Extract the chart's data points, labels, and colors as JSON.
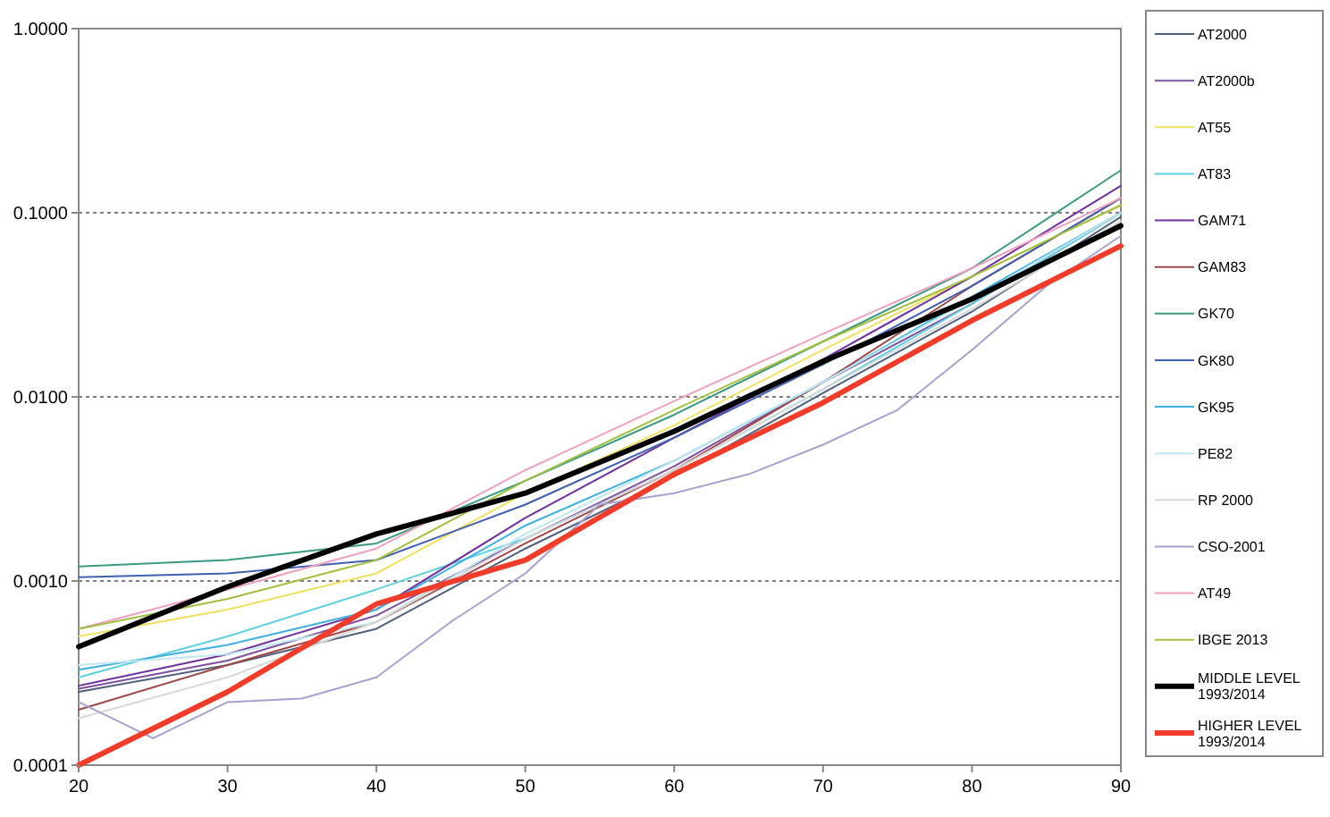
{
  "chart_data": {
    "type": "line",
    "log": "y",
    "grid": "y",
    "legend": "right",
    "marker": "none",
    "line_style": "solid",
    "x": [
      20,
      30,
      40,
      50,
      60,
      70,
      80,
      90
    ],
    "xlim": [
      20,
      90
    ],
    "xticks": [
      20,
      30,
      40,
      50,
      60,
      70,
      80,
      90
    ],
    "ylim": [
      0.0001,
      1
    ],
    "yticks": [
      {
        "value": 0.0001,
        "label": "0.0001"
      },
      {
        "value": 0.001,
        "label": "0.0010"
      },
      {
        "value": 0.01,
        "label": "0.0100"
      },
      {
        "value": 0.1,
        "label": "0.1000"
      },
      {
        "value": 1,
        "label": "1.0000"
      }
    ],
    "series": [
      {
        "name": "AT2000",
        "color": "#506080",
        "values": [
          0.00025,
          0.00035,
          0.00055,
          0.0015,
          0.0037,
          0.0105,
          0.029,
          0.095
        ]
      },
      {
        "name": "AT2000b",
        "color": "#8050a0",
        "values": [
          0.00026,
          0.00037,
          0.00065,
          0.0017,
          0.0042,
          0.012,
          0.032,
          0.1
        ]
      },
      {
        "name": "AT55",
        "color": "#f0e060",
        "values": [
          0.0005,
          0.0007,
          0.0011,
          0.003,
          0.007,
          0.018,
          0.045,
          0.11
        ]
      },
      {
        "name": "AT83",
        "color": "#60d0e0",
        "values": [
          0.0003,
          0.0005,
          0.0009,
          0.0017,
          0.004,
          0.011,
          0.032,
          0.1
        ]
      },
      {
        "name": "GAM71",
        "color": "#7030a0",
        "values": [
          0.00027,
          0.0004,
          0.0007,
          0.0022,
          0.006,
          0.016,
          0.045,
          0.14
        ]
      },
      {
        "name": "GAM83",
        "color": "#a04848",
        "values": [
          0.0002,
          0.00035,
          0.0006,
          0.0016,
          0.004,
          0.012,
          0.04,
          0.12
        ]
      },
      {
        "name": "GK70",
        "color": "#3a9a80",
        "values": [
          0.0012,
          0.0013,
          0.0016,
          0.0035,
          0.008,
          0.02,
          0.05,
          0.17
        ]
      },
      {
        "name": "GK80",
        "color": "#4060b0",
        "values": [
          0.00105,
          0.0011,
          0.0013,
          0.0026,
          0.006,
          0.015,
          0.04,
          0.12
        ]
      },
      {
        "name": "GK95",
        "color": "#40b0e0",
        "values": [
          0.00033,
          0.00045,
          0.0007,
          0.002,
          0.0045,
          0.012,
          0.035,
          0.1
        ]
      },
      {
        "name": "PE82",
        "color": "#c0e8f0",
        "values": [
          0.00035,
          0.0004,
          0.0006,
          0.0018,
          0.0045,
          0.012,
          0.034,
          0.1
        ]
      },
      {
        "name": "RP 2000",
        "color": "#d8d8d8",
        "values": [
          0.00018,
          0.0003,
          0.0006,
          0.0017,
          0.004,
          0.011,
          0.03,
          0.09
        ]
      },
      {
        "name": "CSO-2001",
        "color": "#a8a0d0",
        "x": [
          20,
          25,
          30,
          35,
          40,
          45,
          50,
          55,
          60,
          65,
          70,
          75,
          80,
          85,
          90
        ],
        "values": [
          0.00022,
          0.00014,
          0.00022,
          0.00023,
          0.0003,
          0.0006,
          0.0011,
          0.0026,
          0.003,
          0.0038,
          0.0055,
          0.0085,
          0.018,
          0.04,
          0.075
        ]
      },
      {
        "name": "AT49",
        "color": "#f0a0c0",
        "values": [
          0.00055,
          0.0009,
          0.0015,
          0.004,
          0.0095,
          0.022,
          0.05,
          0.12
        ]
      },
      {
        "name": "IBGE 2013",
        "color": "#a0c040",
        "values": [
          0.00055,
          0.0008,
          0.0013,
          0.0035,
          0.0085,
          0.02,
          0.045,
          0.11
        ]
      },
      {
        "name": "MIDDLE LEVEL 1993/2014",
        "color": "#000000",
        "values": [
          0.00044,
          0.00093,
          0.0018,
          0.003,
          0.0065,
          0.0156,
          0.034,
          0.085
        ]
      },
      {
        "name": "HIGHER LEVEL 1993/2014",
        "color": "#f03c28",
        "values": [
          0.0001,
          0.00025,
          0.00075,
          0.0013,
          0.0038,
          0.0093,
          0.026,
          0.066
        ]
      }
    ]
  }
}
